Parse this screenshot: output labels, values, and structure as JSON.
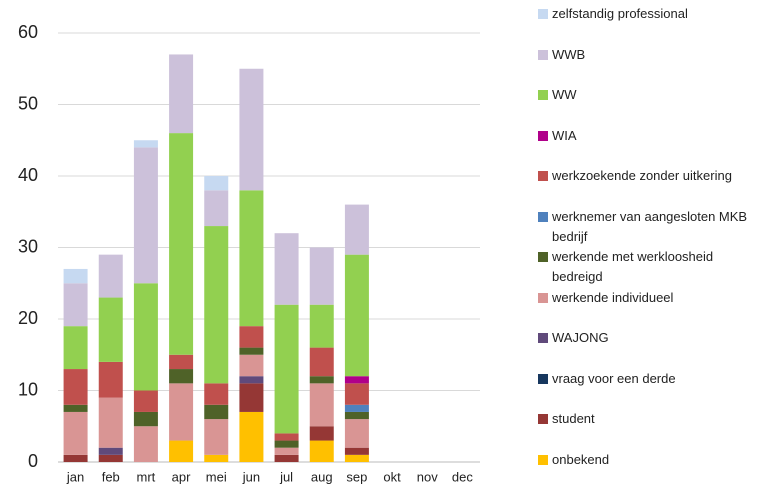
{
  "chart_data": {
    "type": "bar",
    "stacked": true,
    "categories": [
      "jan",
      "feb",
      "mrt",
      "apr",
      "mei",
      "jun",
      "jul",
      "aug",
      "sep",
      "okt",
      "nov",
      "dec"
    ],
    "ylim": [
      0,
      60
    ],
    "yticks": [
      0,
      10,
      20,
      30,
      40,
      50,
      60
    ],
    "grid": true,
    "series": [
      {
        "name": "onbekend",
        "color": "#ffc000",
        "values": [
          0,
          0,
          0,
          3,
          1,
          7,
          0,
          3,
          1,
          null,
          null,
          null
        ]
      },
      {
        "name": "student",
        "color": "#953735",
        "values": [
          1,
          1,
          0,
          0,
          0,
          4,
          1,
          2,
          1,
          null,
          null,
          null
        ]
      },
      {
        "name": "vraag voor een derde",
        "color": "#17375e",
        "values": [
          0,
          0,
          0,
          0,
          0,
          0,
          0,
          0,
          0,
          null,
          null,
          null
        ]
      },
      {
        "name": "WAJONG",
        "color": "#604a7b",
        "values": [
          0,
          1,
          0,
          0,
          0,
          1,
          0,
          0,
          0,
          null,
          null,
          null
        ]
      },
      {
        "name": "werkende individueel",
        "color": "#d99594",
        "values": [
          6,
          7,
          5,
          8,
          5,
          3,
          1,
          6,
          4,
          null,
          null,
          null
        ]
      },
      {
        "name": "werkende met werkloosheid bedreigd",
        "color": "#4f6228",
        "values": [
          1,
          0,
          2,
          2,
          2,
          1,
          1,
          1,
          1,
          null,
          null,
          null
        ]
      },
      {
        "name": "werknemer van aangesloten MKB bedrijf",
        "color": "#4f81bd",
        "values": [
          0,
          0,
          0,
          0,
          0,
          0,
          0,
          0,
          1,
          null,
          null,
          null
        ]
      },
      {
        "name": "werkzoekende zonder uitkering",
        "color": "#c0504d",
        "values": [
          5,
          5,
          3,
          2,
          3,
          3,
          1,
          4,
          3,
          null,
          null,
          null
        ]
      },
      {
        "name": "WIA",
        "color": "#b0008a",
        "values": [
          0,
          0,
          0,
          0,
          0,
          0,
          0,
          0,
          1,
          null,
          null,
          null
        ]
      },
      {
        "name": "WW",
        "color": "#92d050",
        "values": [
          6,
          9,
          15,
          31,
          22,
          19,
          18,
          6,
          17,
          null,
          null,
          null
        ]
      },
      {
        "name": "WWB",
        "color": "#ccc1da",
        "values": [
          6,
          6,
          19,
          11,
          5,
          17,
          10,
          8,
          7,
          null,
          null,
          null
        ]
      },
      {
        "name": "zelfstandig professional",
        "color": "#c6d9f1",
        "values": [
          2,
          0,
          1,
          0,
          2,
          0,
          0,
          0,
          0,
          null,
          null,
          null
        ]
      }
    ]
  }
}
